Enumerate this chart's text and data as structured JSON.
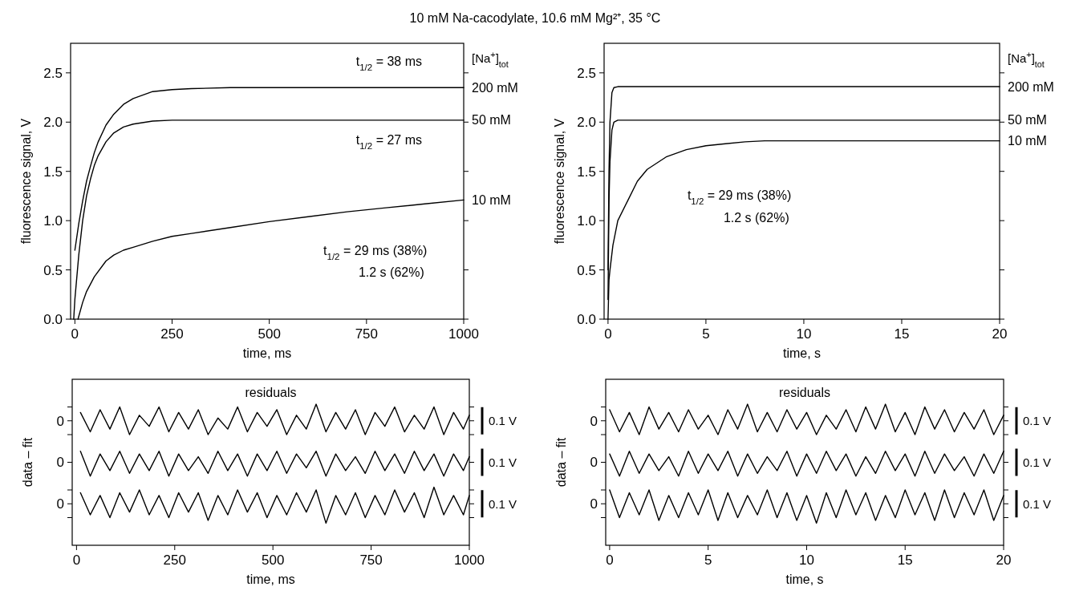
{
  "chart_data": [
    {
      "type": "line",
      "title": "10 mM Na-cacodylate, 10.6 mM Mg²⁺, 35 °C",
      "xlabel": "time, ms",
      "ylabel": "fluorescence signal, V",
      "legend_title": "[Na$^{+}$]$_{tot}$",
      "xlim": [
        -11,
        1000
      ],
      "ylim": [
        0,
        2.8
      ],
      "xticks": [
        0,
        250,
        500,
        750,
        1000
      ],
      "yticks": [
        {
          "value": 0,
          "label": "0.0"
        },
        0.5,
        {
          "value": 1,
          "label": "1.0"
        },
        1.5,
        {
          "value": 2,
          "label": "2.0"
        },
        2.5
      ],
      "series": [
        {
          "name": "200 mM",
          "color": "#000000",
          "x": [
            0,
            10,
            20,
            30,
            40,
            50,
            60,
            80,
            100,
            125,
            150,
            200,
            250,
            300,
            400,
            500,
            600,
            700,
            800,
            900,
            1000
          ],
          "values": [
            0.7,
            0.97,
            1.2,
            1.4,
            1.55,
            1.69,
            1.8,
            1.97,
            2.08,
            2.18,
            2.24,
            2.31,
            2.33,
            2.34,
            2.35,
            2.35,
            2.35,
            2.35,
            2.35,
            2.35,
            2.35
          ]
        },
        {
          "name": "50 mM",
          "color": "#000000",
          "x": [
            -3,
            0,
            10,
            20,
            30,
            40,
            50,
            60,
            80,
            100,
            125,
            150,
            200,
            250,
            400,
            600,
            800,
            1000
          ],
          "values": [
            0,
            0.2,
            0.65,
            1.0,
            1.25,
            1.42,
            1.56,
            1.66,
            1.8,
            1.89,
            1.95,
            1.98,
            2.01,
            2.02,
            2.02,
            2.02,
            2.02,
            2.02
          ]
        },
        {
          "name": "10 mM",
          "color": "#000000",
          "x": [
            8,
            20,
            30,
            50,
            80,
            100,
            125,
            150,
            200,
            250,
            300,
            400,
            500,
            600,
            700,
            800,
            900,
            1000
          ],
          "values": [
            0,
            0.17,
            0.28,
            0.43,
            0.59,
            0.65,
            0.7,
            0.73,
            0.79,
            0.84,
            0.87,
            0.93,
            0.99,
            1.04,
            1.09,
            1.13,
            1.17,
            1.21
          ]
        }
      ],
      "legend": "right",
      "annotations": [
        "t$_{1/2}$ = 38 ms",
        "t$_{1/2}$ = 27 ms",
        "t$_{1/2}$ = 29 ms (38%)",
        "1.2 s (62%)"
      ]
    },
    {
      "type": "line",
      "xlabel": "time, s",
      "ylabel": "fluorescence signal, V",
      "legend_title": "[Na$^{+}$]$_{tot}$",
      "xlim": [
        -0.2,
        20
      ],
      "ylim": [
        0,
        2.8
      ],
      "xticks": [
        0,
        5,
        10,
        15,
        20
      ],
      "yticks": [
        {
          "value": 0,
          "label": "0.0"
        },
        0.5,
        {
          "value": 1,
          "label": "1.0"
        },
        1.5,
        {
          "value": 2,
          "label": "2.0"
        },
        2.5
      ],
      "series": [
        {
          "name": "200 mM",
          "color": "#000000",
          "x": [
            0,
            0.05,
            0.1,
            0.2,
            0.3,
            0.5,
            5,
            10,
            15,
            20
          ],
          "values": [
            0.5,
            1.5,
            2.0,
            2.3,
            2.35,
            2.36,
            2.36,
            2.36,
            2.36,
            2.36
          ]
        },
        {
          "name": "50 mM",
          "color": "#000000",
          "x": [
            0,
            0.05,
            0.1,
            0.2,
            0.3,
            0.5,
            5,
            10,
            15,
            20
          ],
          "values": [
            0.2,
            1.2,
            1.6,
            1.92,
            2.0,
            2.02,
            2.02,
            2.02,
            2.02,
            2.02
          ]
        },
        {
          "name": "10 mM",
          "color": "#000000",
          "x": [
            0,
            0.05,
            0.1,
            0.25,
            0.5,
            1,
            1.5,
            2,
            3,
            4,
            5,
            6,
            7,
            8,
            10,
            15,
            20
          ],
          "values": [
            0,
            0.4,
            0.5,
            0.75,
            1.0,
            1.2,
            1.4,
            1.52,
            1.65,
            1.72,
            1.76,
            1.78,
            1.8,
            1.81,
            1.81,
            1.81,
            1.81
          ]
        }
      ],
      "legend": "right",
      "annotations": [
        "t$_{1/2}$ = 29 ms (38%)",
        "1.2 s (62%)"
      ]
    },
    {
      "type": "line",
      "xlabel": "time, ms",
      "ylabel": "data – fit",
      "xlim": [
        -11,
        1000
      ],
      "ylim": [
        -0.15,
        0.45
      ],
      "xticks": [
        0,
        250,
        500,
        750,
        1000
      ],
      "yticks": [
        {
          "value": -0.05,
          "label": null
        },
        {
          "value": 0,
          "label": "0"
        },
        {
          "value": 0.05,
          "label": null
        },
        {
          "value": 0.15,
          "label": "0"
        },
        {
          "value": 0.25,
          "label": null
        },
        {
          "value": 0.3,
          "label": "0"
        },
        {
          "value": 0.35,
          "label": null
        }
      ],
      "x": [
        10,
        35,
        60,
        85,
        110,
        135,
        160,
        185,
        210,
        235,
        260,
        285,
        310,
        335,
        360,
        385,
        410,
        435,
        460,
        485,
        510,
        535,
        560,
        585,
        610,
        635,
        660,
        685,
        710,
        735,
        760,
        785,
        810,
        835,
        860,
        885,
        910,
        935,
        960,
        985,
        1000
      ],
      "series": [
        {
          "color": "#000000",
          "values": [
            0.33,
            0.26,
            0.34,
            0.27,
            0.35,
            0.25,
            0.32,
            0.28,
            0.35,
            0.26,
            0.33,
            0.27,
            0.34,
            0.25,
            0.31,
            0.27,
            0.35,
            0.26,
            0.33,
            0.28,
            0.34,
            0.25,
            0.32,
            0.27,
            0.36,
            0.26,
            0.33,
            0.27,
            0.34,
            0.25,
            0.33,
            0.28,
            0.35,
            0.26,
            0.32,
            0.27,
            0.35,
            0.25,
            0.33,
            0.27,
            0.32
          ]
        },
        {
          "color": "#000000",
          "values": [
            0.19,
            0.1,
            0.18,
            0.12,
            0.19,
            0.11,
            0.18,
            0.12,
            0.19,
            0.1,
            0.18,
            0.12,
            0.17,
            0.11,
            0.19,
            0.12,
            0.18,
            0.1,
            0.18,
            0.12,
            0.19,
            0.11,
            0.18,
            0.13,
            0.19,
            0.1,
            0.18,
            0.12,
            0.17,
            0.11,
            0.19,
            0.12,
            0.18,
            0.11,
            0.19,
            0.12,
            0.18,
            0.1,
            0.18,
            0.12,
            0.17
          ]
        },
        {
          "color": "#000000",
          "values": [
            0.04,
            -0.04,
            0.03,
            -0.05,
            0.04,
            -0.03,
            0.05,
            -0.04,
            0.03,
            -0.05,
            0.04,
            -0.03,
            0.04,
            -0.06,
            0.03,
            -0.04,
            0.05,
            -0.03,
            0.04,
            -0.05,
            0.03,
            -0.04,
            0.04,
            -0.03,
            0.05,
            -0.07,
            0.03,
            -0.04,
            0.04,
            -0.05,
            0.03,
            -0.04,
            0.05,
            -0.03,
            0.04,
            -0.05,
            0.06,
            -0.04,
            0.03,
            -0.04,
            0.03
          ]
        }
      ],
      "annotations": [
        "residuals",
        "0.1 V",
        "0.1 V",
        "0.1 V"
      ]
    },
    {
      "type": "line",
      "xlabel": "time, s",
      "ylabel": "data – fit",
      "xlim": [
        -0.2,
        20
      ],
      "ylim": [
        -0.15,
        0.45
      ],
      "xticks": [
        0,
        5,
        10,
        15,
        20
      ],
      "yticks": [
        {
          "value": -0.05,
          "label": null
        },
        {
          "value": 0,
          "label": "0"
        },
        {
          "value": 0.05,
          "label": null
        },
        {
          "value": 0.15,
          "label": "0"
        },
        {
          "value": 0.25,
          "label": null
        },
        {
          "value": 0.3,
          "label": "0"
        },
        {
          "value": 0.35,
          "label": null
        }
      ],
      "x": [
        0,
        0.5,
        1,
        1.5,
        2,
        2.5,
        3,
        3.5,
        4,
        4.5,
        5,
        5.5,
        6,
        6.5,
        7,
        7.5,
        8,
        8.5,
        9,
        9.5,
        10,
        10.5,
        11,
        11.5,
        12,
        12.5,
        13,
        13.5,
        14,
        14.5,
        15,
        15.5,
        16,
        16.5,
        17,
        17.5,
        18,
        18.5,
        19,
        19.5,
        20
      ],
      "series": [
        {
          "color": "#000000",
          "values": [
            0.34,
            0.26,
            0.33,
            0.25,
            0.35,
            0.27,
            0.33,
            0.26,
            0.34,
            0.27,
            0.32,
            0.25,
            0.34,
            0.27,
            0.36,
            0.26,
            0.33,
            0.26,
            0.34,
            0.27,
            0.33,
            0.25,
            0.32,
            0.27,
            0.34,
            0.26,
            0.35,
            0.27,
            0.36,
            0.26,
            0.33,
            0.25,
            0.35,
            0.27,
            0.34,
            0.26,
            0.33,
            0.27,
            0.34,
            0.25,
            0.32
          ]
        },
        {
          "color": "#000000",
          "values": [
            0.18,
            0.1,
            0.19,
            0.11,
            0.18,
            0.12,
            0.17,
            0.1,
            0.19,
            0.11,
            0.18,
            0.12,
            0.19,
            0.1,
            0.18,
            0.11,
            0.17,
            0.12,
            0.19,
            0.1,
            0.18,
            0.11,
            0.19,
            0.12,
            0.18,
            0.1,
            0.17,
            0.11,
            0.19,
            0.12,
            0.18,
            0.1,
            0.19,
            0.11,
            0.18,
            0.12,
            0.17,
            0.1,
            0.18,
            0.11,
            0.19
          ]
        },
        {
          "color": "#000000",
          "values": [
            0.05,
            -0.05,
            0.04,
            -0.04,
            0.05,
            -0.06,
            0.03,
            -0.05,
            0.04,
            -0.04,
            0.05,
            -0.06,
            0.04,
            -0.05,
            0.03,
            -0.04,
            0.05,
            -0.05,
            0.04,
            -0.06,
            0.03,
            -0.07,
            0.04,
            -0.05,
            0.05,
            -0.04,
            0.04,
            -0.06,
            0.03,
            -0.05,
            0.05,
            -0.04,
            0.04,
            -0.06,
            0.05,
            -0.05,
            0.04,
            -0.04,
            0.05,
            -0.06,
            0.03
          ]
        }
      ],
      "annotations": [
        "residuals",
        "0.1 V",
        "0.1 V",
        "0.1 V"
      ]
    }
  ]
}
